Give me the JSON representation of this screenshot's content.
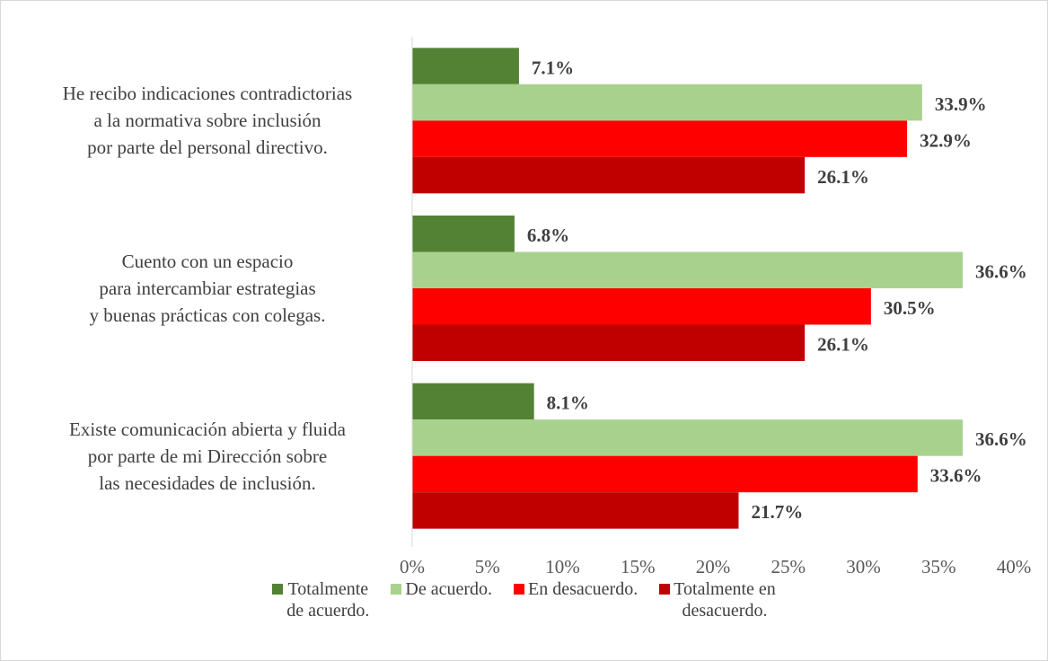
{
  "chart_data": {
    "type": "hbar",
    "categories": [
      "He recibo indicaciones contradictorias\na la normativa sobre inclusión\npor parte del personal directivo.",
      "Cuento con un espacio\npara intercambiar estrategias\ny buenas prácticas con colegas.",
      "Existe comunicación abierta y fluida\npor parte de mi Dirección sobre\nlas necesidades de inclusión."
    ],
    "series": [
      {
        "name": "Totalmente\nde acuerdo.",
        "color": "#548235",
        "values": [
          7.1,
          6.8,
          8.1
        ],
        "value_labels": [
          "7.1%",
          "6.8%",
          "8.1%"
        ]
      },
      {
        "name": "De acuerdo.",
        "color": "#a9d18e",
        "values": [
          33.9,
          36.6,
          36.6
        ],
        "value_labels": [
          "33.9%",
          "36.6%",
          "36.6%"
        ]
      },
      {
        "name": "En desacuerdo.",
        "color": "#ff0000",
        "values": [
          32.9,
          30.5,
          33.6
        ],
        "value_labels": [
          "32.9%",
          "30.5%",
          "33.6%"
        ]
      },
      {
        "name": "Totalmente en\ndesacuerdo.",
        "color": "#c00000",
        "values": [
          26.1,
          26.1,
          21.7
        ],
        "value_labels": [
          "26.1%",
          "26.1%",
          "21.7%"
        ]
      }
    ],
    "xlim": [
      0,
      40
    ],
    "xticks": [
      {
        "value": 0,
        "label": "0%"
      },
      {
        "value": 5,
        "label": "5%"
      },
      {
        "value": 10,
        "label": "10%"
      },
      {
        "value": 15,
        "label": "15%"
      },
      {
        "value": 20,
        "label": "20%"
      },
      {
        "value": 25,
        "label": "25%"
      },
      {
        "value": 30,
        "label": "30%"
      },
      {
        "value": 35,
        "label": "35%"
      },
      {
        "value": 40,
        "label": "40%"
      }
    ],
    "legend": "bottom"
  }
}
